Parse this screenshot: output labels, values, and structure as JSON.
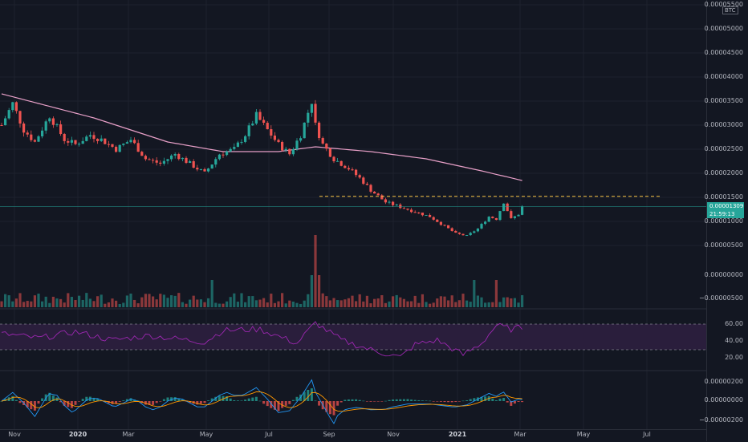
{
  "axis": {
    "currency_badge": "BTC",
    "price_labels": [
      {
        "text": "0.00005500",
        "v": 5.5e-05
      },
      {
        "text": "0.00005000",
        "v": 5e-05
      },
      {
        "text": "0.00004500",
        "v": 4.5e-05
      },
      {
        "text": "0.00004000",
        "v": 4e-05
      },
      {
        "text": "0.00003500",
        "v": 3.5e-05
      },
      {
        "text": "0.00003000",
        "v": 3e-05
      },
      {
        "text": "0.00002500",
        "v": 2.5e-05
      },
      {
        "text": "0.00002000",
        "v": 2e-05
      },
      {
        "text": "0.00001500",
        "v": 1.5e-05
      },
      {
        "text": "0.00001000",
        "v": 1e-05
      },
      {
        "text": "0.00000500",
        "v": 5e-06
      }
    ],
    "current_price": "0.00001309",
    "current_price_value": 1.309e-05,
    "countdown": "21:59:13",
    "volume_labels": [
      "0.00000000",
      "−0.00000500"
    ],
    "rsi_labels": [
      "60.00",
      "40.00",
      "20.00"
    ],
    "macd_labels": [
      "0.00000200",
      "0.00000000",
      "−0.00000200"
    ],
    "time_labels": [
      {
        "text": "Nov",
        "bold": false
      },
      {
        "text": "2020",
        "bold": true
      },
      {
        "text": "Mar",
        "bold": false
      },
      {
        "text": "May",
        "bold": false
      },
      {
        "text": "Jul",
        "bold": false
      },
      {
        "text": "Sep",
        "bold": false
      },
      {
        "text": "Nov",
        "bold": false
      },
      {
        "text": "2021",
        "bold": true
      },
      {
        "text": "Mar",
        "bold": false
      },
      {
        "text": "May",
        "bold": false
      },
      {
        "text": "Jul",
        "bold": false
      }
    ]
  },
  "colors": {
    "background": "#131722",
    "up": "#26a69a",
    "down": "#ef5350",
    "ma": "#e8a0c8",
    "resistance": "#f5c242",
    "rsi": "#9c27b0",
    "rsi_band": "#2a1e3c",
    "macd": "#2196f3",
    "signal": "#ff9800"
  },
  "chart_data": {
    "type": "candlestick",
    "instrument_quote": "BTC",
    "resistance_level": 1.52e-05,
    "rsi_band": [
      30,
      70
    ],
    "price_path": [
      [
        0,
        3e-05
      ],
      [
        3,
        3.45e-05
      ],
      [
        6,
        2.9e-05
      ],
      [
        9,
        2.65e-05
      ],
      [
        13,
        3.2e-05
      ],
      [
        17,
        2.7e-05
      ],
      [
        20,
        2.6e-05
      ],
      [
        24,
        2.8e-05
      ],
      [
        27,
        2.7e-05
      ],
      [
        31,
        2.5e-05
      ],
      [
        35,
        2.7e-05
      ],
      [
        39,
        2.3e-05
      ],
      [
        43,
        2.2e-05
      ],
      [
        47,
        2.4e-05
      ],
      [
        51,
        2.2e-05
      ],
      [
        55,
        2e-05
      ],
      [
        59,
        2.4e-05
      ],
      [
        63,
        2.5e-05
      ],
      [
        66,
        2.8e-05
      ],
      [
        69,
        3.2e-05
      ],
      [
        72,
        2.9e-05
      ],
      [
        75,
        2.6e-05
      ],
      [
        78,
        2.4e-05
      ],
      [
        81,
        2.8e-05
      ],
      [
        84,
        3.5e-05
      ],
      [
        85,
        3e-05
      ],
      [
        87,
        2.6e-05
      ],
      [
        90,
        2.3e-05
      ],
      [
        94,
        2.1e-05
      ],
      [
        97,
        1.9e-05
      ],
      [
        100,
        1.65e-05
      ],
      [
        104,
        1.4e-05
      ],
      [
        108,
        1.3e-05
      ],
      [
        112,
        1.2e-05
      ],
      [
        116,
        1.1e-05
      ],
      [
        120,
        9e-06
      ],
      [
        123,
        7.5e-06
      ],
      [
        126,
        7e-06
      ],
      [
        129,
        8.5e-06
      ],
      [
        132,
        1.1e-05
      ],
      [
        134,
        1.05e-05
      ],
      [
        136,
        1.4e-05
      ],
      [
        138,
        1.05e-05
      ],
      [
        140,
        1.15e-05
      ],
      [
        141,
        1.3e-05
      ]
    ],
    "ma_path": [
      [
        0,
        3.65e-05
      ],
      [
        25,
        3.15e-05
      ],
      [
        45,
        2.65e-05
      ],
      [
        60,
        2.45e-05
      ],
      [
        75,
        2.45e-05
      ],
      [
        85,
        2.55e-05
      ],
      [
        100,
        2.45e-05
      ],
      [
        115,
        2.3e-05
      ],
      [
        130,
        2.05e-05
      ],
      [
        141,
        1.85e-05
      ]
    ],
    "rsi_path": [
      [
        0,
        55
      ],
      [
        10,
        48
      ],
      [
        20,
        58
      ],
      [
        30,
        45
      ],
      [
        40,
        52
      ],
      [
        55,
        42
      ],
      [
        60,
        60
      ],
      [
        70,
        62
      ],
      [
        80,
        40
      ],
      [
        85,
        72
      ],
      [
        92,
        45
      ],
      [
        100,
        30
      ],
      [
        108,
        18
      ],
      [
        112,
        38
      ],
      [
        118,
        45
      ],
      [
        125,
        22
      ],
      [
        130,
        40
      ],
      [
        134,
        68
      ],
      [
        138,
        62
      ],
      [
        141,
        65
      ]
    ]
  }
}
